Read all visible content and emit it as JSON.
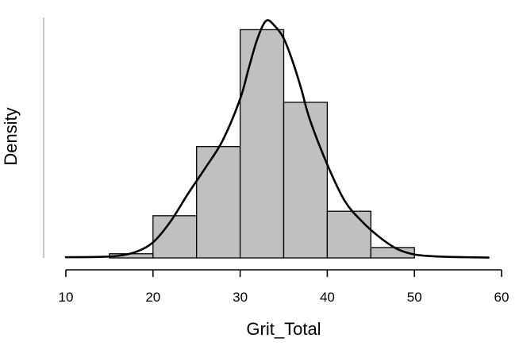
{
  "chart_data": {
    "type": "bar",
    "xlabel": "Grit_Total",
    "ylabel": "Density",
    "xlim": [
      10,
      60
    ],
    "x_ticks": [
      "10",
      "20",
      "30",
      "40",
      "50",
      "60"
    ],
    "y_tick_labels_shown": false,
    "grid": false,
    "legend": "none",
    "histogram": {
      "bin_width": 5,
      "bins": [
        {
          "start": 15,
          "end": 20,
          "density": 0.0012
        },
        {
          "start": 20,
          "end": 25,
          "density": 0.0122
        },
        {
          "start": 25,
          "end": 30,
          "density": 0.0322
        },
        {
          "start": 30,
          "end": 35,
          "density": 0.066
        },
        {
          "start": 35,
          "end": 40,
          "density": 0.045
        },
        {
          "start": 40,
          "end": 45,
          "density": 0.0135
        },
        {
          "start": 45,
          "end": 50,
          "density": 0.003
        }
      ]
    },
    "density_curve": {
      "name": "",
      "x": [
        10,
        14,
        16,
        18,
        20,
        22,
        24,
        26,
        28,
        30,
        31,
        32,
        33,
        34,
        35,
        36,
        37,
        38,
        40,
        42,
        44,
        46,
        48,
        50,
        52,
        54,
        56,
        58.5
      ],
      "y": [
        0.0002,
        0.0003,
        0.0006,
        0.0017,
        0.0045,
        0.0105,
        0.0185,
        0.026,
        0.034,
        0.046,
        0.055,
        0.0635,
        0.0686,
        0.067,
        0.0635,
        0.057,
        0.049,
        0.04,
        0.027,
        0.0165,
        0.0105,
        0.006,
        0.0026,
        0.001,
        0.0005,
        0.0003,
        0.0002,
        0.0001
      ]
    },
    "ylim": [
      0,
      0.07
    ],
    "colors": {
      "bar_fill": "#c0c0c0",
      "bar_stroke": "#000000",
      "curve": "#000000"
    }
  }
}
